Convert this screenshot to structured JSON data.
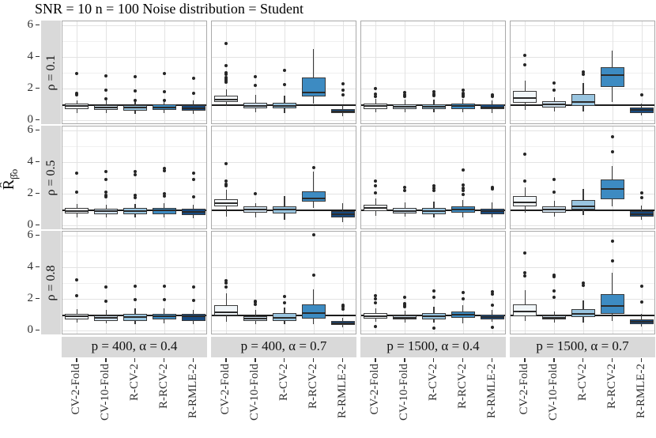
{
  "title": "SNR = 10 n = 100 Noise distribution = Student",
  "ylabel_main": "R̂",
  "ylabel_sub": "β̂o",
  "chart_data": {
    "type": "boxplot",
    "title": "SNR = 10 n = 100 Noise distribution = Student",
    "ylabel": "R_hat_beta_hat_o",
    "yticks": [
      0,
      2,
      4,
      6
    ],
    "ylim": [
      -0.3,
      6.3
    ],
    "minor_gridlines": [
      1,
      3,
      5
    ],
    "reference_line_y": 1,
    "grid": true,
    "facet_row_labels": [
      "ρ = 0.1",
      "ρ = 0.5",
      "ρ = 0.8"
    ],
    "facet_col_labels": [
      "p = 400, α = 0.4",
      "p = 400, α = 0.7",
      "p = 1500, α = 0.4",
      "p = 1500, α = 0.7"
    ],
    "categories": [
      "CV-2-Fold",
      "CV-10-Fold",
      "R-CV-2",
      "R-RCV-2",
      "R-RMLE-2"
    ],
    "box_fill_colors": [
      "#f2f7fa",
      "#cfe1ef",
      "#99c5e0",
      "#3d8bc2",
      "#17497f"
    ],
    "box_border_color": "#3a3a3a",
    "strip_bg_color": "#d9d9d9",
    "panels": [
      {
        "row": 0,
        "col": 0,
        "boxes": [
          {
            "q1": 0.7,
            "med": 0.88,
            "q3": 1.05,
            "lo": 0.45,
            "hi": 1.25,
            "out": [
              1.6,
              1.7,
              2.95
            ]
          },
          {
            "q1": 0.65,
            "med": 0.8,
            "q3": 0.95,
            "lo": 0.45,
            "hi": 1.25,
            "out": [
              1.35,
              1.9,
              2.8
            ]
          },
          {
            "q1": 0.62,
            "med": 0.78,
            "q3": 0.95,
            "lo": 0.4,
            "hi": 1.25,
            "out": [
              1.25,
              1.85,
              2.75
            ]
          },
          {
            "q1": 0.65,
            "med": 0.8,
            "q3": 1.0,
            "lo": 0.45,
            "hi": 1.3,
            "out": [
              1.25,
              1.8,
              2.95
            ]
          },
          {
            "q1": 0.58,
            "med": 0.75,
            "q3": 0.95,
            "lo": 0.4,
            "hi": 1.25,
            "out": [
              1.7,
              2.65
            ]
          }
        ]
      },
      {
        "row": 0,
        "col": 1,
        "boxes": [
          {
            "q1": 1.15,
            "med": 1.32,
            "q3": 1.55,
            "lo": 0.9,
            "hi": 1.95,
            "out": [
              2.4,
              2.5,
              2.6,
              2.7,
              2.9,
              3.0,
              3.45,
              4.85
            ]
          },
          {
            "q1": 0.75,
            "med": 0.92,
            "q3": 1.1,
            "lo": 0.5,
            "hi": 1.6,
            "out": [
              2.2,
              2.75
            ]
          },
          {
            "q1": 0.75,
            "med": 0.92,
            "q3": 1.12,
            "lo": 0.45,
            "hi": 1.55,
            "out": [
              2.25,
              3.15
            ]
          },
          {
            "q1": 1.5,
            "med": 1.75,
            "q3": 2.7,
            "lo": 1.05,
            "hi": 4.5,
            "out": []
          },
          {
            "q1": 0.45,
            "med": 0.57,
            "q3": 0.72,
            "lo": 0.25,
            "hi": 0.95,
            "out": [
              1.6,
              1.9,
              2.3
            ]
          }
        ]
      },
      {
        "row": 0,
        "col": 2,
        "boxes": [
          {
            "q1": 0.72,
            "med": 0.88,
            "q3": 1.05,
            "lo": 0.5,
            "hi": 1.35,
            "out": [
              1.5,
              1.65,
              2.0
            ]
          },
          {
            "q1": 0.7,
            "med": 0.85,
            "q3": 1.0,
            "lo": 0.5,
            "hi": 1.3,
            "out": [
              1.5,
              1.6,
              1.75
            ]
          },
          {
            "q1": 0.7,
            "med": 0.85,
            "q3": 1.02,
            "lo": 0.48,
            "hi": 1.3,
            "out": [
              1.55,
              1.65,
              1.8
            ]
          },
          {
            "q1": 0.72,
            "med": 0.88,
            "q3": 1.05,
            "lo": 0.5,
            "hi": 1.35,
            "out": [
              1.5,
              1.6,
              1.7,
              1.9
            ]
          },
          {
            "q1": 0.68,
            "med": 0.82,
            "q3": 0.98,
            "lo": 0.45,
            "hi": 1.25,
            "out": [
              1.5,
              1.6
            ]
          }
        ]
      },
      {
        "row": 0,
        "col": 3,
        "boxes": [
          {
            "q1": 1.1,
            "med": 1.4,
            "q3": 1.85,
            "lo": 0.65,
            "hi": 2.5,
            "out": [
              3.5,
              4.1
            ]
          },
          {
            "q1": 0.8,
            "med": 1.0,
            "q3": 1.2,
            "lo": 0.55,
            "hi": 1.45,
            "out": [
              1.9,
              2.35
            ]
          },
          {
            "q1": 0.9,
            "med": 1.15,
            "q3": 1.65,
            "lo": 0.55,
            "hi": 2.35,
            "out": [
              2.9,
              3.05
            ]
          },
          {
            "q1": 2.1,
            "med": 2.85,
            "q3": 3.35,
            "lo": 1.15,
            "hi": 4.4,
            "out": []
          },
          {
            "q1": 0.45,
            "med": 0.63,
            "q3": 0.8,
            "lo": 0.3,
            "hi": 1.05,
            "out": [
              1.6
            ]
          }
        ]
      },
      {
        "row": 1,
        "col": 0,
        "boxes": [
          {
            "q1": 0.75,
            "med": 0.92,
            "q3": 1.1,
            "lo": 0.5,
            "hi": 1.35,
            "out": [
              2.1,
              3.3
            ]
          },
          {
            "q1": 0.72,
            "med": 0.88,
            "q3": 1.05,
            "lo": 0.5,
            "hi": 1.3,
            "out": [
              1.8,
              1.9,
              2.1,
              2.9,
              3.4
            ]
          },
          {
            "q1": 0.7,
            "med": 0.9,
            "q3": 1.08,
            "lo": 0.48,
            "hi": 1.35,
            "out": [
              1.75,
              1.9,
              3.2,
              3.4
            ]
          },
          {
            "q1": 0.72,
            "med": 0.95,
            "q3": 1.12,
            "lo": 0.5,
            "hi": 1.4,
            "out": [
              1.85,
              2.0,
              3.45,
              3.6
            ]
          },
          {
            "q1": 0.65,
            "med": 0.85,
            "q3": 1.05,
            "lo": 0.45,
            "hi": 1.3,
            "out": [
              1.8,
              2.9,
              3.3
            ]
          }
        ]
      },
      {
        "row": 1,
        "col": 1,
        "boxes": [
          {
            "q1": 1.18,
            "med": 1.38,
            "q3": 1.65,
            "lo": 0.55,
            "hi": 2.25,
            "out": [
              2.5,
              2.6,
              2.8,
              3.9
            ]
          },
          {
            "q1": 0.78,
            "med": 1.0,
            "q3": 1.2,
            "lo": 0.48,
            "hi": 1.4,
            "out": [
              2.0
            ]
          },
          {
            "q1": 0.75,
            "med": 1.0,
            "q3": 1.22,
            "lo": 0.35,
            "hi": 1.85,
            "out": []
          },
          {
            "q1": 1.5,
            "med": 1.7,
            "q3": 2.15,
            "lo": 1.1,
            "hi": 3.4,
            "out": [
              3.65
            ]
          },
          {
            "q1": 0.48,
            "med": 0.7,
            "q3": 0.9,
            "lo": 0.22,
            "hi": 1.4,
            "out": []
          }
        ]
      },
      {
        "row": 1,
        "col": 2,
        "boxes": [
          {
            "q1": 0.9,
            "med": 1.08,
            "q3": 1.28,
            "lo": 0.6,
            "hi": 1.7,
            "out": [
              2.05,
              2.5,
              2.8
            ]
          },
          {
            "q1": 0.75,
            "med": 0.92,
            "q3": 1.08,
            "lo": 0.55,
            "hi": 1.45,
            "out": [
              2.2,
              2.4
            ]
          },
          {
            "q1": 0.72,
            "med": 0.9,
            "q3": 1.08,
            "lo": 0.5,
            "hi": 1.5,
            "out": [
              2.2,
              2.35,
              2.5
            ]
          },
          {
            "q1": 0.82,
            "med": 1.0,
            "q3": 1.18,
            "lo": 0.5,
            "hi": 1.6,
            "out": [
              1.95,
              2.2,
              2.35,
              2.55,
              3.5
            ]
          },
          {
            "q1": 0.72,
            "med": 0.9,
            "q3": 1.05,
            "lo": 0.5,
            "hi": 1.45,
            "out": [
              2.3,
              2.4
            ]
          }
        ]
      },
      {
        "row": 1,
        "col": 3,
        "boxes": [
          {
            "q1": 1.2,
            "med": 1.45,
            "q3": 1.85,
            "lo": 0.8,
            "hi": 2.4,
            "out": [
              2.8,
              4.5
            ]
          },
          {
            "q1": 0.8,
            "med": 0.98,
            "q3": 1.18,
            "lo": 0.55,
            "hi": 1.55,
            "out": [
              2.1,
              2.9
            ]
          },
          {
            "q1": 1.0,
            "med": 1.2,
            "q3": 1.6,
            "lo": 0.65,
            "hi": 2.3,
            "out": []
          },
          {
            "q1": 1.65,
            "med": 2.3,
            "q3": 2.9,
            "lo": 1.2,
            "hi": 3.75,
            "out": [
              4.65,
              5.6
            ]
          },
          {
            "q1": 0.55,
            "med": 0.72,
            "q3": 0.9,
            "lo": 0.35,
            "hi": 1.25,
            "out": [
              1.75,
              2.05
            ]
          }
        ]
      },
      {
        "row": 2,
        "col": 0,
        "boxes": [
          {
            "q1": 0.7,
            "med": 0.88,
            "q3": 1.05,
            "lo": 0.5,
            "hi": 1.35,
            "out": [
              2.2,
              3.2
            ]
          },
          {
            "q1": 0.62,
            "med": 0.8,
            "q3": 0.95,
            "lo": 0.45,
            "hi": 1.3,
            "out": [
              1.85,
              2.75
            ]
          },
          {
            "q1": 0.6,
            "med": 0.85,
            "q3": 1.05,
            "lo": 0.38,
            "hi": 1.4,
            "out": [
              1.95,
              2.8
            ]
          },
          {
            "q1": 0.68,
            "med": 0.9,
            "q3": 1.05,
            "lo": 0.45,
            "hi": 1.4,
            "out": [
              1.95,
              2.8
            ]
          },
          {
            "q1": 0.6,
            "med": 0.88,
            "q3": 1.05,
            "lo": 0.4,
            "hi": 1.3,
            "out": [
              1.9,
              2.75
            ]
          }
        ]
      },
      {
        "row": 2,
        "col": 1,
        "boxes": [
          {
            "q1": 0.95,
            "med": 1.15,
            "q3": 1.6,
            "lo": 0.55,
            "hi": 2.35,
            "out": [
              2.75,
              3.0,
              3.15
            ]
          },
          {
            "q1": 0.6,
            "med": 0.75,
            "q3": 0.88,
            "lo": 0.42,
            "hi": 1.3,
            "out": [
              1.65,
              1.8,
              1.85
            ]
          },
          {
            "q1": 0.6,
            "med": 0.8,
            "q3": 1.08,
            "lo": 0.4,
            "hi": 1.45,
            "out": [
              1.75,
              2.15
            ]
          },
          {
            "q1": 0.75,
            "med": 1.1,
            "q3": 1.65,
            "lo": 0.4,
            "hi": 2.6,
            "out": [
              3.5,
              6.05
            ]
          },
          {
            "q1": 0.35,
            "med": 0.47,
            "q3": 0.58,
            "lo": 0.2,
            "hi": 0.8,
            "out": [
              1.35,
              1.5,
              1.6
            ]
          }
        ]
      },
      {
        "row": 2,
        "col": 2,
        "boxes": [
          {
            "q1": 0.75,
            "med": 0.9,
            "q3": 1.1,
            "lo": 0.55,
            "hi": 1.4,
            "out": [
              0.25,
              1.75,
              2.0,
              2.2
            ]
          },
          {
            "q1": 0.68,
            "med": 0.8,
            "q3": 0.95,
            "lo": 0.5,
            "hi": 1.25,
            "out": [
              1.5,
              1.6,
              1.7,
              2.1
            ]
          },
          {
            "q1": 0.72,
            "med": 0.9,
            "q3": 1.1,
            "lo": 0.5,
            "hi": 1.5,
            "out": [
              0.15,
              2.1,
              2.5
            ]
          },
          {
            "q1": 0.8,
            "med": 1.0,
            "q3": 1.2,
            "lo": 0.45,
            "hi": 1.6,
            "out": [
              2.0,
              2.4
            ]
          },
          {
            "q1": 0.7,
            "med": 0.85,
            "q3": 1.0,
            "lo": 0.55,
            "hi": 1.3,
            "out": [
              0.2,
              1.6,
              2.3,
              2.45
            ]
          }
        ]
      },
      {
        "row": 2,
        "col": 3,
        "boxes": [
          {
            "q1": 0.9,
            "med": 1.2,
            "q3": 1.65,
            "lo": 0.6,
            "hi": 2.55,
            "out": [
              3.45,
              3.65,
              4.9
            ]
          },
          {
            "q1": 0.68,
            "med": 0.8,
            "q3": 0.95,
            "lo": 0.5,
            "hi": 1.2,
            "out": [
              2.1,
              2.5,
              3.4,
              3.5
            ]
          },
          {
            "q1": 0.85,
            "med": 1.05,
            "q3": 1.35,
            "lo": 0.5,
            "hi": 1.9,
            "out": [
              2.85,
              3.0
            ]
          },
          {
            "q1": 1.05,
            "med": 1.55,
            "q3": 2.3,
            "lo": 0.6,
            "hi": 3.65,
            "out": [
              4.4,
              5.65
            ]
          },
          {
            "q1": 0.4,
            "med": 0.55,
            "q3": 0.7,
            "lo": 0.25,
            "hi": 1.05,
            "out": [
              1.8,
              2.8
            ]
          }
        ]
      }
    ]
  }
}
